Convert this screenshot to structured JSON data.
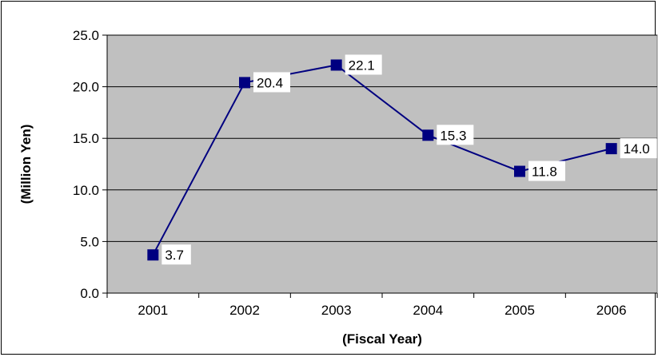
{
  "chart_data": {
    "type": "line",
    "categories": [
      "2001",
      "2002",
      "2003",
      "2004",
      "2005",
      "2006"
    ],
    "series": [
      {
        "values": [
          3.7,
          20.4,
          22.1,
          15.3,
          11.8,
          14.0
        ]
      }
    ],
    "data_labels": [
      "3.7",
      "20.4",
      "22.1",
      "15.3",
      "11.8",
      "14.0"
    ],
    "yticks": [
      "0.0",
      "5.0",
      "10.0",
      "15.0",
      "20.0",
      "25.0"
    ],
    "ylim": [
      0,
      25
    ],
    "xlabel": "(Fiscal Year)",
    "ylabel": "(Million Yen)",
    "grid": true,
    "colors": {
      "plot_bg": "#c0c0c0",
      "line": "#000080",
      "marker": "#000080",
      "grid": "#000000"
    }
  }
}
